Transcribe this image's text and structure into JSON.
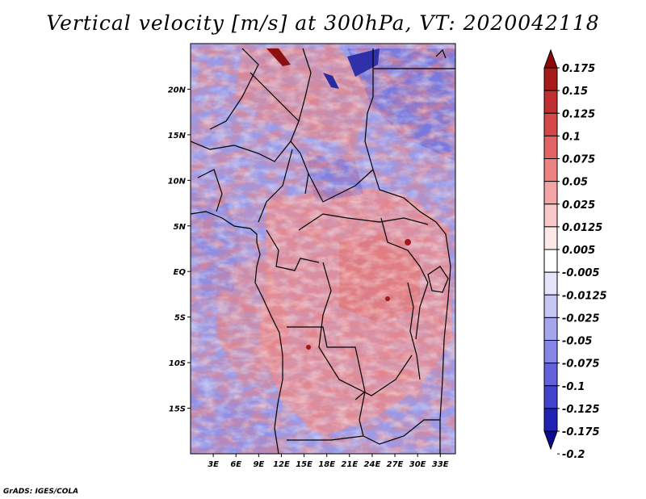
{
  "title": "Vertical velocity [m/s] at 300hPa, VT: 2020042118",
  "credit": "GrADS: IGES/COLA",
  "map": {
    "lon_range": [
      0,
      35
    ],
    "lat_range": [
      -20,
      25
    ],
    "x_ticks": [
      "3E",
      "6E",
      "9E",
      "12E",
      "15E",
      "18E",
      "21E",
      "24E",
      "27E",
      "30E",
      "33E"
    ],
    "y_ticks": [
      "20N",
      "15N",
      "10N",
      "5N",
      "EQ",
      "5S",
      "10S",
      "15S"
    ]
  },
  "colorbar": {
    "labels": [
      "0.175",
      "0.15",
      "0.125",
      "0.1",
      "0.075",
      "0.05",
      "0.025",
      "0.0125",
      "0.005",
      "-0.005",
      "-0.0125",
      "-0.025",
      "-0.05",
      "-0.075",
      "-0.1",
      "-0.125",
      "-0.175",
      "-0.2"
    ],
    "colors": [
      "#8b0a0a",
      "#a81b1b",
      "#c22f2f",
      "#d44848",
      "#e26464",
      "#ec8282",
      "#f4a4a4",
      "#f9c8c8",
      "#fde8e8",
      "#ffffff",
      "#e4e4fb",
      "#c6c6f5",
      "#a6a6ee",
      "#8686e6",
      "#6262dc",
      "#4242cc",
      "#2222b4",
      "#0c0c92"
    ]
  }
}
